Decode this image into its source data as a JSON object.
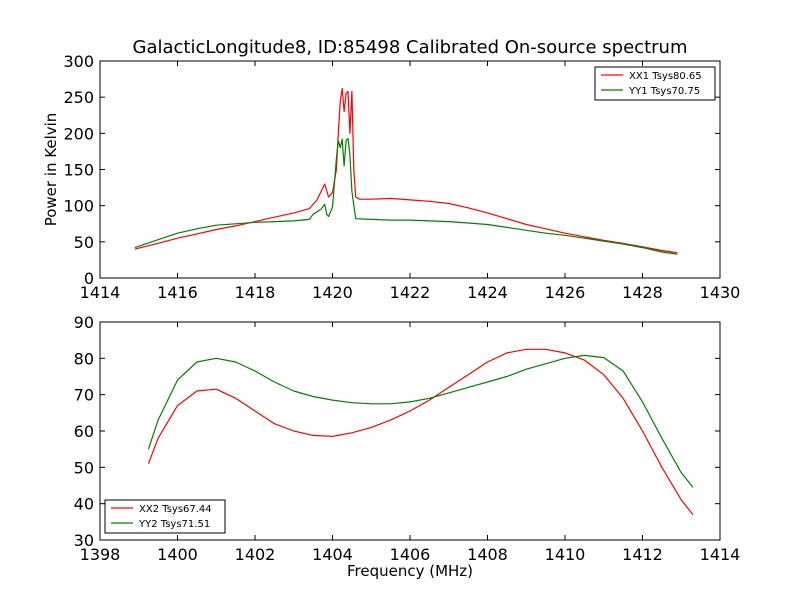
{
  "title": "GalacticLongitude8, ID:85498 Calibrated On-source spectrum",
  "chart_data": [
    {
      "type": "line",
      "title": "GalacticLongitude8, ID:85498 Calibrated On-source spectrum",
      "xlabel": "",
      "ylabel": "Power in Kelvin",
      "xlim": [
        1414,
        1430
      ],
      "ylim": [
        0,
        300
      ],
      "xticks": [
        1414,
        1416,
        1418,
        1420,
        1422,
        1424,
        1426,
        1428,
        1430
      ],
      "xtick_labels": [
        "1414",
        "1416",
        "1418",
        "1420",
        "1422",
        "1424",
        "1426",
        "1428",
        "1430"
      ],
      "yticks": [
        0,
        50,
        100,
        150,
        200,
        250,
        300
      ],
      "ytick_labels": [
        "0",
        "50",
        "100",
        "150",
        "200",
        "250",
        "300"
      ],
      "grid": false,
      "legend_position": "top-right",
      "series": [
        {
          "name": "XX1 Tsys80.65",
          "color": "#ff0000",
          "x": [
            1414.9,
            1415.5,
            1416.0,
            1416.5,
            1417.0,
            1417.5,
            1418.0,
            1418.5,
            1419.0,
            1419.4,
            1419.6,
            1419.8,
            1419.9,
            1420.0,
            1420.1,
            1420.15,
            1420.2,
            1420.25,
            1420.3,
            1420.35,
            1420.4,
            1420.45,
            1420.5,
            1420.55,
            1420.6,
            1420.7,
            1421.0,
            1421.5,
            1422.0,
            1422.5,
            1423.0,
            1423.5,
            1424.0,
            1424.5,
            1425.0,
            1425.5,
            1426.0,
            1426.5,
            1427.0,
            1427.5,
            1428.0,
            1428.5,
            1428.9
          ],
          "y": [
            40,
            48,
            55,
            61,
            67,
            72,
            78,
            84,
            90,
            96,
            108,
            130,
            112,
            118,
            150,
            200,
            245,
            262,
            230,
            255,
            258,
            200,
            258,
            150,
            112,
            109,
            109,
            110,
            108,
            106,
            103,
            97,
            90,
            82,
            74,
            68,
            62,
            57,
            52,
            48,
            43,
            38,
            35
          ]
        },
        {
          "name": "YY1 Tsys70.75",
          "color": "#008000",
          "x": [
            1414.9,
            1415.5,
            1416.0,
            1416.5,
            1417.0,
            1417.5,
            1418.0,
            1418.5,
            1419.0,
            1419.4,
            1419.5,
            1419.7,
            1419.8,
            1419.85,
            1419.9,
            1420.0,
            1420.1,
            1420.15,
            1420.2,
            1420.25,
            1420.3,
            1420.35,
            1420.4,
            1420.45,
            1420.5,
            1420.6,
            1421.0,
            1421.5,
            1422.0,
            1422.5,
            1423.0,
            1423.5,
            1424.0,
            1424.5,
            1425.0,
            1425.5,
            1426.0,
            1426.5,
            1427.0,
            1427.5,
            1428.0,
            1428.5,
            1428.9
          ],
          "y": [
            42,
            53,
            62,
            68,
            73,
            75,
            77,
            78,
            79,
            81,
            88,
            95,
            102,
            88,
            85,
            98,
            165,
            190,
            180,
            192,
            155,
            190,
            193,
            170,
            120,
            82,
            81,
            80,
            80,
            79,
            78,
            76,
            74,
            70,
            66,
            62,
            59,
            55,
            51,
            47,
            42,
            36,
            33
          ]
        }
      ]
    },
    {
      "type": "line",
      "title": "",
      "xlabel": "Frequency (MHz)",
      "ylabel": "",
      "xlim": [
        1398,
        1414
      ],
      "ylim": [
        30,
        90
      ],
      "xticks": [
        1398,
        1400,
        1402,
        1404,
        1406,
        1408,
        1410,
        1412,
        1414
      ],
      "xtick_labels": [
        "1398",
        "1400",
        "1402",
        "1404",
        "1406",
        "1408",
        "1410",
        "1412",
        "1414"
      ],
      "yticks": [
        30,
        40,
        50,
        60,
        70,
        80,
        90
      ],
      "ytick_labels": [
        "30",
        "40",
        "50",
        "60",
        "70",
        "80",
        "90"
      ],
      "grid": false,
      "legend_position": "bottom-left",
      "series": [
        {
          "name": "XX2 Tsys67.44",
          "color": "#ff0000",
          "x": [
            1399.25,
            1399.5,
            1400.0,
            1400.5,
            1401.0,
            1401.5,
            1402.0,
            1402.5,
            1403.0,
            1403.5,
            1404.0,
            1404.5,
            1405.0,
            1405.5,
            1406.0,
            1406.5,
            1407.0,
            1407.5,
            1408.0,
            1408.5,
            1409.0,
            1409.5,
            1410.0,
            1410.5,
            1411.0,
            1411.5,
            1412.0,
            1412.5,
            1413.0,
            1413.3
          ],
          "y": [
            51,
            58,
            67,
            71,
            71.5,
            69,
            65.5,
            62,
            60,
            58.8,
            58.5,
            59.5,
            61,
            63,
            65.5,
            68.5,
            72,
            75.5,
            79,
            81.5,
            82.5,
            82.5,
            81.5,
            79.5,
            75.5,
            69,
            60,
            50,
            41,
            37
          ]
        },
        {
          "name": "YY2 Tsys71.51",
          "color": "#008000",
          "x": [
            1399.25,
            1399.5,
            1400.0,
            1400.5,
            1401.0,
            1401.5,
            1402.0,
            1402.5,
            1403.0,
            1403.5,
            1404.0,
            1404.5,
            1405.0,
            1405.5,
            1406.0,
            1406.5,
            1407.0,
            1407.5,
            1408.0,
            1408.5,
            1409.0,
            1409.5,
            1410.0,
            1410.5,
            1411.0,
            1411.5,
            1412.0,
            1412.5,
            1413.0,
            1413.3
          ],
          "y": [
            55,
            63,
            74,
            79,
            80,
            79,
            76.5,
            73.5,
            71,
            69.5,
            68.5,
            67.8,
            67.5,
            67.5,
            68,
            69,
            70.5,
            72,
            73.5,
            75,
            77,
            78.5,
            80,
            80.8,
            80.2,
            76.5,
            68,
            58,
            48.5,
            44.5
          ]
        }
      ]
    }
  ]
}
